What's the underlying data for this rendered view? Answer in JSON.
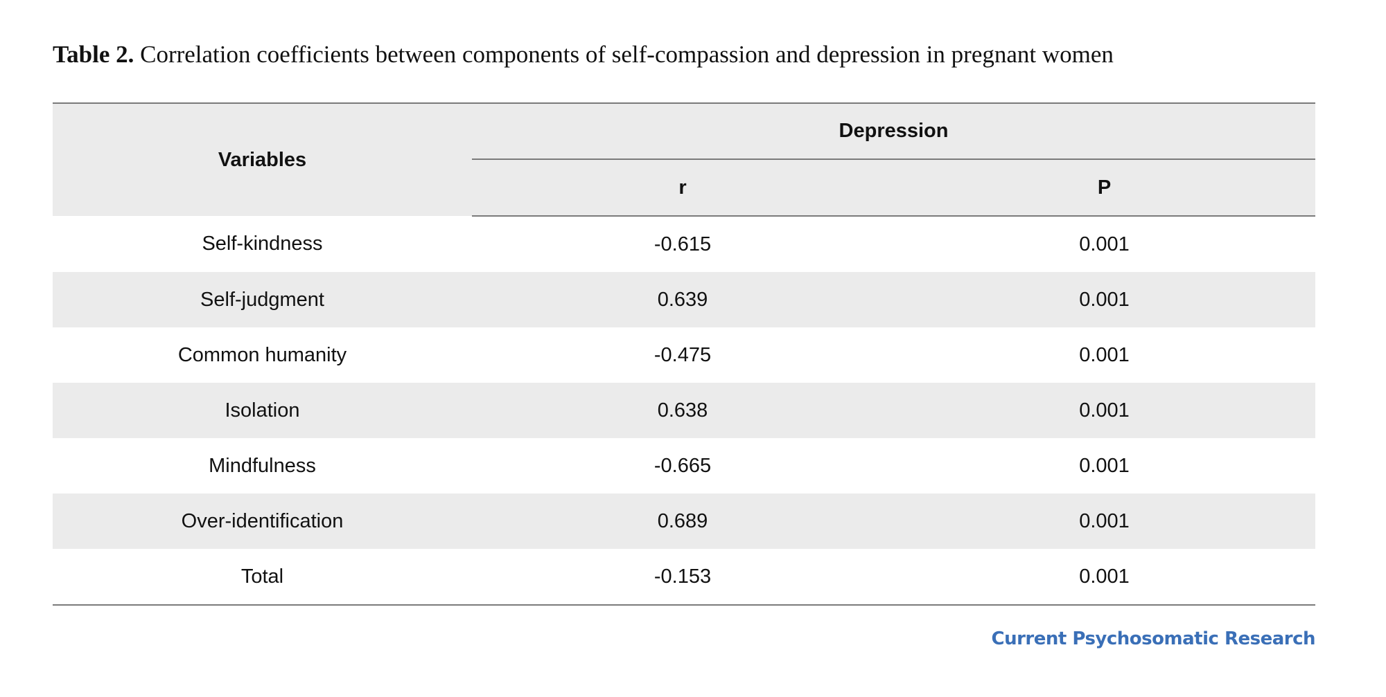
{
  "caption": {
    "label": "Table 2.",
    "text": "Correlation coefficients between components of self-compassion and depression in pregnant women"
  },
  "table": {
    "header": {
      "variables": "Variables",
      "group": "Depression",
      "col_r": "r",
      "col_p": "P"
    },
    "rows": [
      {
        "variable": "Self-kindness",
        "r": "-0.615",
        "p": "0.001"
      },
      {
        "variable": "Self-judgment",
        "r": "0.639",
        "p": "0.001"
      },
      {
        "variable": "Common humanity",
        "r": "-0.475",
        "p": "0.001"
      },
      {
        "variable": "Isolation",
        "r": "0.638",
        "p": "0.001"
      },
      {
        "variable": "Mindfulness",
        "r": "-0.665",
        "p": "0.001"
      },
      {
        "variable": "Over-identification",
        "r": "0.689",
        "p": "0.001"
      },
      {
        "variable": "Total",
        "r": "-0.153",
        "p": "0.001"
      }
    ]
  },
  "brand": {
    "text": "Current Psychosomatic Research",
    "color": "#3a6fb7"
  }
}
